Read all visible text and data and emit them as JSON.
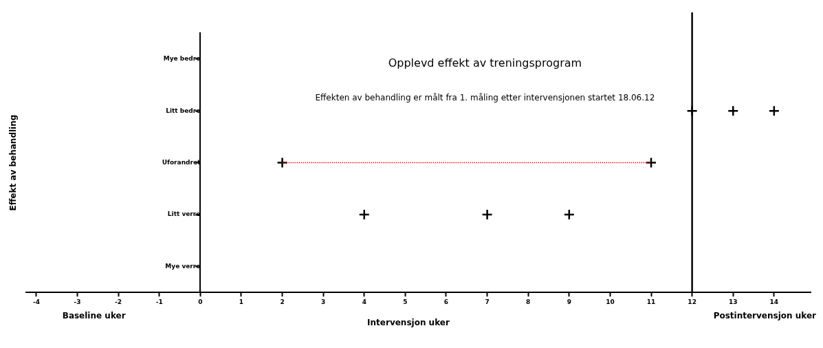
{
  "chart_data": {
    "type": "scatter",
    "orientation": "horizontal",
    "title": "Opplevd effekt av treningsprogram",
    "subtitle": "Effekten av behandling er målt fra 1. måling etter intervensjonen startet 18.06.12",
    "xlabel": "Intervensjon uker",
    "ylabel": "Effekt av behandling",
    "annotations": [
      "Baseline uker",
      "Postintervensjon uker"
    ],
    "xlim": [
      -4.25,
      14.9
    ],
    "xticks": [
      -4,
      -3,
      -2,
      -1,
      0,
      1,
      2,
      3,
      4,
      5,
      6,
      7,
      8,
      9,
      10,
      11,
      12,
      13,
      14
    ],
    "categories": [
      "Mye bedre",
      "Litt bedre",
      "Uforandret",
      "Litt verre",
      "Mye verre"
    ],
    "series": [
      {
        "color": "#000000",
        "marker": "cross",
        "x": [
          "Uforandret",
          "Litt verre",
          "Litt verre",
          "Litt verre",
          "Uforandret",
          "Litt bedre",
          "Litt bedre",
          "Litt bedre"
        ],
        "values": [
          2,
          4,
          7,
          9,
          11,
          12,
          13,
          14
        ]
      },
      {
        "type": "line",
        "color": "#ff0000",
        "marker": "none",
        "line_style": "dotted",
        "x": [
          "Uforandret",
          "Uforandret"
        ],
        "values": [
          2,
          11
        ]
      }
    ],
    "ref_lines": [
      {
        "axis": "x",
        "value": 12,
        "color": "#000000"
      }
    ],
    "grid": false,
    "legend": false
  }
}
